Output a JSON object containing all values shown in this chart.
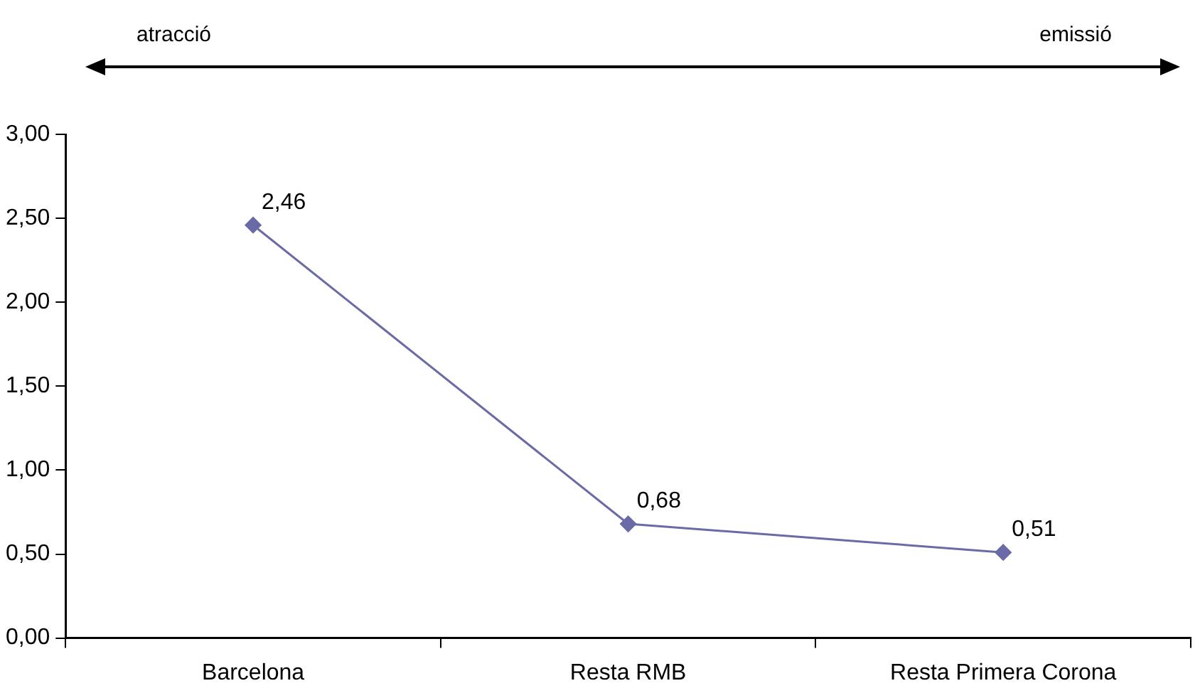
{
  "chart_data": {
    "type": "line",
    "annotations": [
      "atracció",
      "emissió"
    ],
    "categories": [
      "Barcelona",
      "Resta RMB",
      "Resta Primera Corona"
    ],
    "series": [
      {
        "color": "#6a6aa6",
        "values": [
          2.46,
          0.68,
          0.51
        ],
        "value_labels": [
          "2,46",
          "0,68",
          "0,51"
        ]
      }
    ],
    "ylim": [
      0,
      3
    ],
    "yticks": [
      {
        "value": 0,
        "label": "0,00"
      },
      {
        "value": 0.5,
        "label": "0,50"
      },
      {
        "value": 1,
        "label": "1,00"
      },
      {
        "value": 1.5,
        "label": "1,50"
      },
      {
        "value": 2,
        "label": "2,00"
      },
      {
        "value": 2.5,
        "label": "2,50"
      },
      {
        "value": 3,
        "label": "3,00"
      }
    ],
    "grid": false,
    "legend": false,
    "marker": "diamond",
    "line_style": "solid"
  }
}
